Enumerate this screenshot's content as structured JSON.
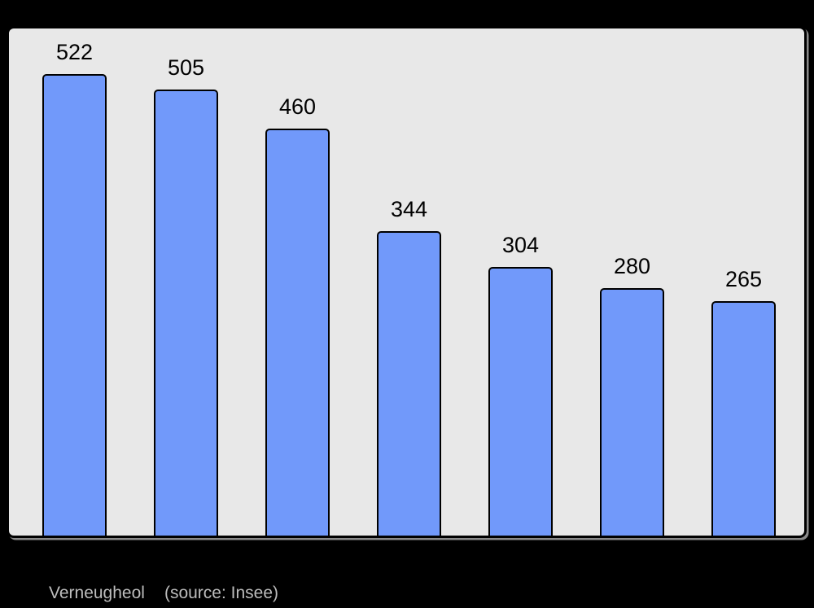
{
  "page": {
    "background_color": "#000000"
  },
  "chart_data": {
    "type": "bar",
    "values": [
      522,
      505,
      460,
      344,
      304,
      280,
      265
    ],
    "title": "",
    "xlabel": "",
    "ylabel": "",
    "ylim": [
      0,
      573
    ],
    "grid": false,
    "legend": "none",
    "data_labels_shown": true,
    "bar_fill_color": "#7199fa",
    "bar_border_color": "#000000",
    "plot_background_color": "#e8e8e8",
    "plot_border_color": "#000000",
    "data_label_color": "#000000"
  },
  "caption": {
    "location": "Verneugheol",
    "source": "(source: Insee)",
    "text_color": "#bdbdbd"
  }
}
